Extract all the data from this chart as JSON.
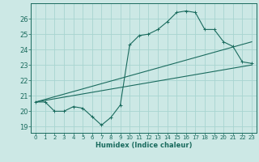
{
  "title": "",
  "xlabel": "Humidex (Indice chaleur)",
  "ylabel": "",
  "background_color": "#cce8e5",
  "grid_color": "#a8d4d0",
  "line_color": "#1a6b5e",
  "xlim": [
    -0.5,
    23.5
  ],
  "ylim": [
    18.6,
    27.0
  ],
  "xticks": [
    0,
    1,
    2,
    3,
    4,
    5,
    6,
    7,
    8,
    9,
    10,
    11,
    12,
    13,
    14,
    15,
    16,
    17,
    18,
    19,
    20,
    21,
    22,
    23
  ],
  "yticks": [
    19,
    20,
    21,
    22,
    23,
    24,
    25,
    26
  ],
  "line1_x": [
    0,
    1,
    2,
    3,
    4,
    5,
    6,
    7,
    8,
    9,
    10,
    11,
    12,
    13,
    14,
    15,
    16,
    17,
    18,
    19,
    20,
    21,
    22,
    23
  ],
  "line1_y": [
    20.6,
    20.6,
    20.0,
    20.0,
    20.3,
    20.2,
    19.65,
    19.1,
    19.6,
    20.4,
    24.3,
    24.9,
    25.0,
    25.3,
    25.8,
    26.4,
    26.5,
    26.4,
    25.3,
    25.3,
    24.5,
    24.2,
    23.2,
    23.1
  ],
  "line2_x": [
    0,
    23
  ],
  "line2_y": [
    20.6,
    24.5
  ],
  "line3_x": [
    0,
    23
  ],
  "line3_y": [
    20.6,
    23.0
  ]
}
